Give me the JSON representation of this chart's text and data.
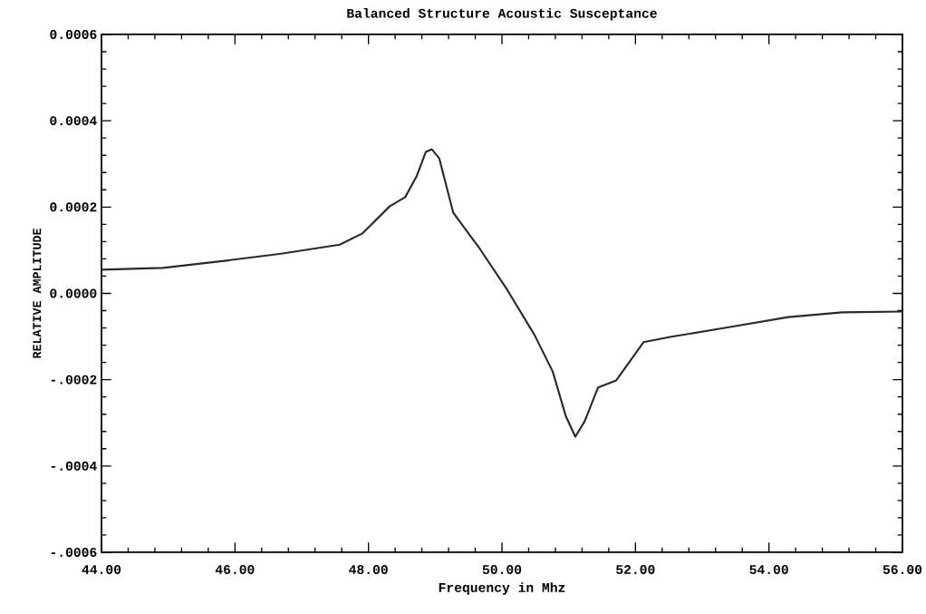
{
  "chart_data": {
    "type": "line",
    "title": "Balanced Structure Acoustic Susceptance",
    "xlabel": "Frequency in Mhz",
    "ylabel": "RELATIVE AMPLITUDE",
    "xlim": [
      44,
      56
    ],
    "ylim": [
      -0.0006,
      0.0006
    ],
    "xticks": [
      {
        "value": 44,
        "label": "44.00"
      },
      {
        "value": 46,
        "label": "46.00"
      },
      {
        "value": 48,
        "label": "48.00"
      },
      {
        "value": 50,
        "label": "50.00"
      },
      {
        "value": 52,
        "label": "52.00"
      },
      {
        "value": 54,
        "label": "54.00"
      },
      {
        "value": 56,
        "label": "56.00"
      }
    ],
    "yticks": [
      {
        "value": -0.0006,
        "label": "-.0006"
      },
      {
        "value": -0.0004,
        "label": "-.0004"
      },
      {
        "value": -0.0002,
        "label": "-.0002"
      },
      {
        "value": 0,
        "label": "0.0000"
      },
      {
        "value": 0.0002,
        "label": "0.0002"
      },
      {
        "value": 0.0004,
        "label": "0.0004"
      },
      {
        "value": 0.0006,
        "label": "0.0006"
      }
    ],
    "grid": false,
    "marker": "none",
    "line_style": "solid",
    "series": [
      {
        "color": "#2a2a2a",
        "x": [
          44.0,
          44.92,
          45.87,
          46.69,
          47.57,
          47.91,
          48.32,
          48.55,
          48.72,
          48.86,
          48.95,
          49.06,
          49.27,
          49.67,
          50.08,
          50.49,
          50.76,
          50.96,
          51.1,
          51.24,
          51.44,
          51.71,
          52.12,
          52.52,
          53.34,
          54.29,
          55.1,
          56.0
        ],
        "values": [
          5.5e-05,
          5.9e-05,
          7.6e-05,
          9.2e-05,
          0.000113,
          0.000139,
          0.000202,
          0.000223,
          0.000271,
          0.000328,
          0.000334,
          0.000313,
          0.000187,
          0.000103,
          8e-06,
          -9.7e-05,
          -0.000181,
          -0.000286,
          -0.000332,
          -0.000296,
          -0.000218,
          -0.000202,
          -0.000113,
          -0.000101,
          -8e-05,
          -5.5e-05,
          -4.4e-05,
          -4.2e-05
        ]
      }
    ]
  }
}
